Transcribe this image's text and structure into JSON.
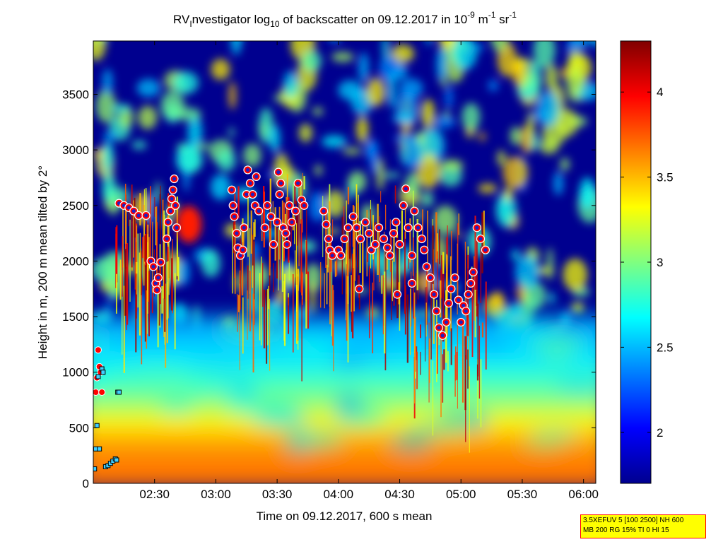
{
  "chart_data": {
    "type": "heatmap",
    "title": {
      "prefix": "RV",
      "sub1": "I",
      "mid": "nvestigator log",
      "sub2": "10",
      "rest": " of backscatter on 09.12.2017 in 10",
      "sup1": "-9",
      "unit1": " m",
      "sup2": "-1",
      "unit2": " sr",
      "sup3": "-1"
    },
    "xlabel": "Time on 09.12.2017, 600 s mean",
    "ylabel": "Height in m, 200 m mean tilted by 2°",
    "x_ticks": [
      "02:30",
      "03:00",
      "03:30",
      "04:00",
      "04:30",
      "05:00",
      "05:30",
      "06:00"
    ],
    "x_tick_hours": [
      2.5,
      3.0,
      3.5,
      4.0,
      4.5,
      5.0,
      5.5,
      6.0
    ],
    "x_range_hours": [
      2.0,
      6.1
    ],
    "y_ticks": [
      0,
      500,
      1000,
      1500,
      2000,
      2500,
      3000,
      3500
    ],
    "y_tick_labels": [
      "0",
      "500",
      "1000",
      "1500",
      "2000",
      "2500",
      "3000",
      "3500"
    ],
    "y_range": [
      0,
      3980
    ],
    "colorbar": {
      "range": [
        1.7,
        4.3
      ],
      "ticks": [
        2,
        2.5,
        3,
        3.5,
        4
      ],
      "tick_labels": [
        "2",
        "2.5",
        "3",
        "3.5",
        "4"
      ],
      "colormap": "jet"
    },
    "cloud_detections": [
      [
        2.21,
        2520
      ],
      [
        2.25,
        2500
      ],
      [
        2.29,
        2480
      ],
      [
        2.33,
        2450
      ],
      [
        2.37,
        2410
      ],
      [
        2.43,
        2410
      ],
      [
        2.47,
        2000
      ],
      [
        2.49,
        1950
      ],
      [
        2.51,
        1800
      ],
      [
        2.52,
        1740
      ],
      [
        2.53,
        1850
      ],
      [
        2.55,
        1990
      ],
      [
        2.6,
        2200
      ],
      [
        2.61,
        2350
      ],
      [
        2.63,
        2450
      ],
      [
        2.64,
        2560
      ],
      [
        2.65,
        2640
      ],
      [
        2.66,
        2740
      ],
      [
        2.67,
        2500
      ],
      [
        2.68,
        2300
      ],
      [
        3.13,
        2640
      ],
      [
        3.14,
        2500
      ],
      [
        3.15,
        2400
      ],
      [
        3.17,
        2250
      ],
      [
        3.18,
        2120
      ],
      [
        3.2,
        2050
      ],
      [
        3.22,
        2100
      ],
      [
        3.23,
        2300
      ],
      [
        3.25,
        2600
      ],
      [
        3.26,
        2820
      ],
      [
        3.28,
        2700
      ],
      [
        3.3,
        2600
      ],
      [
        3.32,
        2500
      ],
      [
        3.33,
        2760
      ],
      [
        3.35,
        2450
      ],
      [
        3.4,
        2300
      ],
      [
        3.42,
        2500
      ],
      [
        3.45,
        2400
      ],
      [
        3.47,
        2150
      ],
      [
        3.5,
        2350
      ],
      [
        3.51,
        2800
      ],
      [
        3.52,
        2600
      ],
      [
        3.53,
        2700
      ],
      [
        3.55,
        2300
      ],
      [
        3.57,
        2250
      ],
      [
        3.58,
        2150
      ],
      [
        3.6,
        2500
      ],
      [
        3.62,
        2350
      ],
      [
        3.65,
        2450
      ],
      [
        3.67,
        2700
      ],
      [
        3.7,
        2550
      ],
      [
        3.72,
        2500
      ],
      [
        3.88,
        2450
      ],
      [
        3.9,
        2330
      ],
      [
        3.92,
        2200
      ],
      [
        3.93,
        2100
      ],
      [
        3.95,
        2050
      ],
      [
        4.0,
        2100
      ],
      [
        4.02,
        2050
      ],
      [
        4.05,
        2200
      ],
      [
        4.08,
        2300
      ],
      [
        4.12,
        2400
      ],
      [
        4.15,
        2300
      ],
      [
        4.18,
        2200
      ],
      [
        4.22,
        2350
      ],
      [
        4.25,
        2250
      ],
      [
        4.27,
        2100
      ],
      [
        4.3,
        2150
      ],
      [
        4.33,
        2300
      ],
      [
        4.37,
        2200
      ],
      [
        4.4,
        2120
      ],
      [
        4.42,
        2050
      ],
      [
        4.45,
        2250
      ],
      [
        4.47,
        2350
      ],
      [
        4.5,
        2150
      ],
      [
        4.53,
        2500
      ],
      [
        4.57,
        2300
      ],
      [
        4.6,
        2050
      ],
      [
        4.6,
        1800
      ],
      [
        4.17,
        1750
      ],
      [
        4.48,
        1700
      ],
      [
        4.55,
        2650
      ],
      [
        4.62,
        2450
      ],
      [
        4.65,
        2300
      ],
      [
        4.68,
        2200
      ],
      [
        4.7,
        2100
      ],
      [
        4.72,
        1950
      ],
      [
        4.75,
        1850
      ],
      [
        4.78,
        1700
      ],
      [
        4.8,
        1550
      ],
      [
        4.82,
        1400
      ],
      [
        4.85,
        1330
      ],
      [
        4.88,
        1450
      ],
      [
        4.9,
        1620
      ],
      [
        4.92,
        1750
      ],
      [
        4.95,
        1850
      ],
      [
        4.98,
        1650
      ],
      [
        5.0,
        1450
      ],
      [
        5.02,
        1600
      ],
      [
        5.04,
        1550
      ],
      [
        5.06,
        1700
      ],
      [
        5.08,
        1800
      ],
      [
        5.1,
        1900
      ],
      [
        5.13,
        2300
      ],
      [
        5.16,
        2200
      ],
      [
        5.2,
        2100
      ]
    ],
    "ground_markers": [
      [
        2.01,
        130
      ],
      [
        2.02,
        310
      ],
      [
        2.03,
        520
      ],
      [
        2.04,
        960
      ],
      [
        2.05,
        310
      ],
      [
        2.07,
        1030
      ],
      [
        2.08,
        1000
      ],
      [
        2.1,
        150
      ],
      [
        2.12,
        160
      ],
      [
        2.14,
        180
      ],
      [
        2.16,
        200
      ],
      [
        2.18,
        220
      ],
      [
        2.19,
        210
      ],
      [
        2.2,
        820
      ],
      [
        2.21,
        820
      ]
    ],
    "low_detections": [
      [
        2.02,
        820
      ],
      [
        2.03,
        950
      ],
      [
        2.04,
        1200
      ],
      [
        2.05,
        1050
      ],
      [
        2.06,
        1000
      ],
      [
        2.07,
        820
      ]
    ],
    "info_box": {
      "line1": "3.5XEFUV 5 [100 2500] NH 600",
      "line2": "MB 200 RG 15% TI 0 HI 15"
    }
  }
}
